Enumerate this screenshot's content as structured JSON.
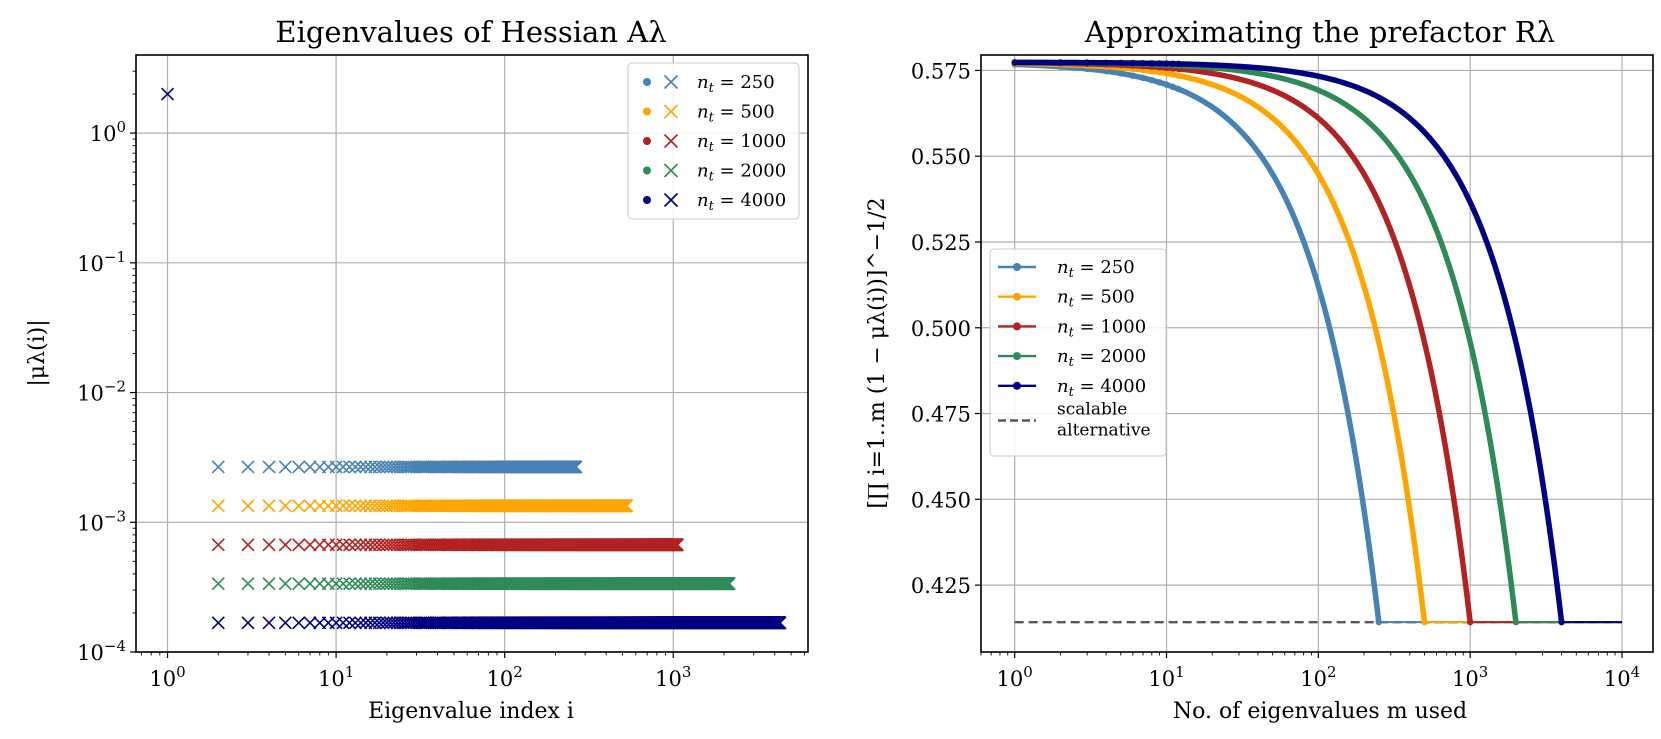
{
  "chart_data": [
    {
      "type": "scatter",
      "title": "Eigenvalues of Hessian Aλ",
      "xlabel": "Eigenvalue index i",
      "ylabel": "|μλ(i)|",
      "xscale": "log",
      "yscale": "log",
      "xlim": [
        0.65,
        6300
      ],
      "ylim": [
        0.0001,
        4
      ],
      "grid": true,
      "legend_position": "top-right",
      "xticks": [
        {
          "value": 1,
          "label": "10^0"
        },
        {
          "value": 10,
          "label": "10^1"
        },
        {
          "value": 100,
          "label": "10^2"
        },
        {
          "value": 1000,
          "label": "10^3"
        }
      ],
      "yticks": [
        {
          "value": 0.0001,
          "label": "10^−4"
        },
        {
          "value": 0.001,
          "label": "10^−3"
        },
        {
          "value": 0.01,
          "label": "10^−2"
        },
        {
          "value": 0.1,
          "label": "10^−1"
        },
        {
          "value": 1,
          "label": "10^0"
        }
      ],
      "top_eigenvalue": {
        "index": 1,
        "value": 2.0,
        "color": "#000080"
      },
      "series": [
        {
          "name": "nt = 250",
          "color": "#4682b4",
          "n": 250,
          "value": 0.00267,
          "index_range": [
            2,
            265
          ]
        },
        {
          "name": "nt = 500",
          "color": "#ffa500",
          "n": 500,
          "value": 0.00134,
          "index_range": [
            2,
            530
          ]
        },
        {
          "name": "nt = 1000",
          "color": "#b22222",
          "n": 1000,
          "value": 0.00067,
          "index_range": [
            2,
            1060
          ]
        },
        {
          "name": "nt = 2000",
          "color": "#2e8b57",
          "n": 2000,
          "value": 0.000336,
          "index_range": [
            2,
            2150
          ]
        },
        {
          "name": "nt = 4000",
          "color": "#000080",
          "n": 4000,
          "value": 0.000168,
          "index_range": [
            2,
            4300
          ]
        }
      ]
    },
    {
      "type": "line",
      "title": "Approximating the prefactor Rλ",
      "xlabel": "No. of eigenvalues m used",
      "ylabel": "[∏ i=1..m (1 − μλ(i))]^−1/2",
      "xscale": "log",
      "xlim": [
        0.6,
        16000
      ],
      "ylim": [
        0.4055,
        0.5795
      ],
      "grid": true,
      "legend_position": "center-left",
      "xticks": [
        {
          "value": 1,
          "label": "10^0"
        },
        {
          "value": 10,
          "label": "10^1"
        },
        {
          "value": 100,
          "label": "10^2"
        },
        {
          "value": 1000,
          "label": "10^3"
        },
        {
          "value": 10000,
          "label": "10^4"
        }
      ],
      "yticks": [
        {
          "value": 0.425,
          "label": "0.425"
        },
        {
          "value": 0.45,
          "label": "0.450"
        },
        {
          "value": 0.475,
          "label": "0.475"
        },
        {
          "value": 0.5,
          "label": "0.500"
        },
        {
          "value": 0.525,
          "label": "0.525"
        },
        {
          "value": 0.55,
          "label": "0.550"
        },
        {
          "value": 0.575,
          "label": "0.575"
        }
      ],
      "start_value": 0.5774,
      "end_value": 0.4142,
      "series": [
        {
          "name": "nt = 250",
          "color": "#4682b4",
          "n": 250,
          "end_m": 250
        },
        {
          "name": "nt = 500",
          "color": "#ffa500",
          "n": 500,
          "end_m": 500
        },
        {
          "name": "nt = 1000",
          "color": "#b22222",
          "n": 1000,
          "end_m": 1000
        },
        {
          "name": "nt = 2000",
          "color": "#2e8b57",
          "n": 2000,
          "end_m": 2000
        },
        {
          "name": "nt = 4000",
          "color": "#000080",
          "n": 4000,
          "end_m": 4000
        }
      ],
      "baseline": {
        "name": "scalable alternative",
        "name_lines": [
          "scalable",
          "alternative"
        ],
        "value": 0.4142,
        "color": "#555566",
        "x_range": [
          1,
          10000
        ]
      }
    }
  ]
}
